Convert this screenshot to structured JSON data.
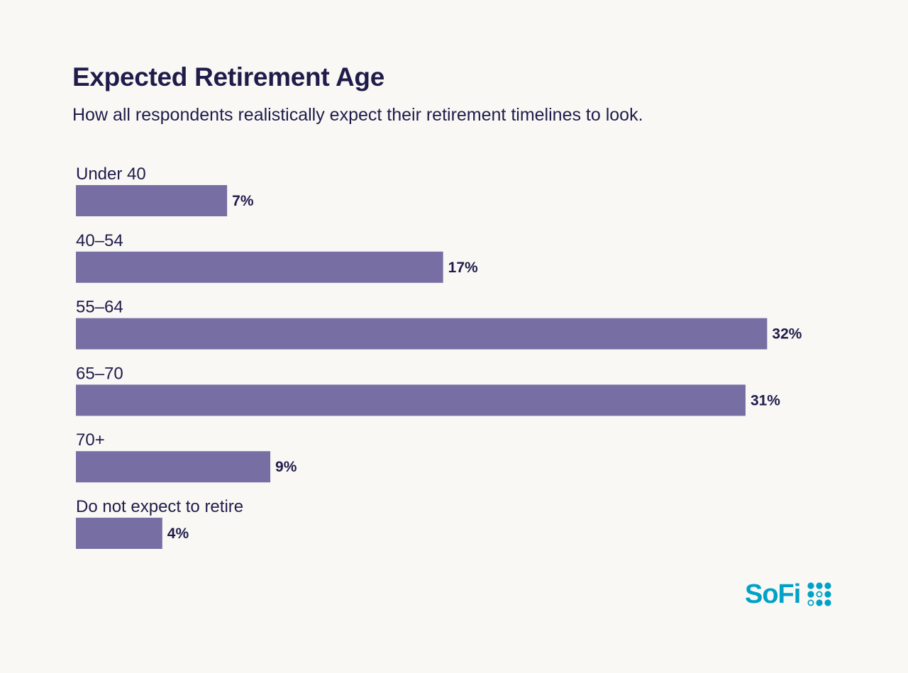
{
  "colors": {
    "background": "#f9f8f5",
    "bar": "#776ea3",
    "text": "#201c4a",
    "brand": "#00a2c7"
  },
  "header": {
    "title": "Expected Retirement Age",
    "subtitle": "How all respondents realistically expect their retirement timelines to look."
  },
  "logo": {
    "text": "SoFi",
    "icon": "sofi-dots-icon"
  },
  "chart_data": {
    "type": "bar",
    "orientation": "horizontal",
    "title": "Expected Retirement Age",
    "subtitle": "How all respondents realistically expect their retirement timelines to look.",
    "categories": [
      "Under 40",
      "40–54",
      "55–64",
      "65–70",
      "70+",
      "Do not expect to retire"
    ],
    "values": [
      7,
      17,
      32,
      31,
      9,
      4
    ],
    "value_labels": [
      "7%",
      "17%",
      "32%",
      "31%",
      "9%",
      "4%"
    ],
    "unit": "%",
    "xlim": [
      0,
      32
    ],
    "grid": false,
    "legend": "none"
  }
}
